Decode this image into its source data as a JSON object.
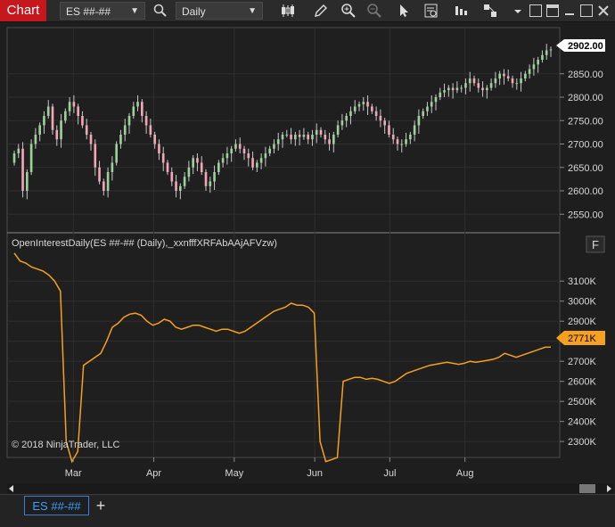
{
  "toolbar": {
    "chart_label": "Chart",
    "instrument": "ES ##-##",
    "interval": "Daily"
  },
  "price_panel": {
    "y_ticks": [
      "2850.00",
      "2800.00",
      "2750.00",
      "2700.00",
      "2650.00",
      "2600.00",
      "2550.00"
    ],
    "last_price": "2902.00"
  },
  "indicator_panel": {
    "title": "OpenInterestDaily(ES ##-## (Daily),_xxnfffXRFAbAAjAFVzw)",
    "f_button": "F",
    "y_ticks": [
      "3100K",
      "3000K",
      "2900K",
      "2800K",
      "2700K",
      "2600K",
      "2500K",
      "2400K",
      "2300K"
    ],
    "last_value": "2771K",
    "copyright": "© 2018 NinjaTrader, LLC",
    "line_color": "#f5a01e"
  },
  "x_axis": {
    "months": [
      "Mar",
      "Apr",
      "May",
      "Jun",
      "Jul",
      "Aug"
    ]
  },
  "tabs": {
    "instrument_tab": "ES ##-##",
    "add_tab": "+"
  },
  "chart_data": [
    {
      "type": "candlestick",
      "series": [
        {
          "name": "ES ##-##"
        }
      ],
      "close": [
        2680,
        2690,
        2600,
        2640,
        2700,
        2720,
        2740,
        2760,
        2780,
        2730,
        2710,
        2750,
        2770,
        2790,
        2780,
        2760,
        2740,
        2720,
        2700,
        2650,
        2620,
        2600,
        2640,
        2660,
        2700,
        2720,
        2740,
        2760,
        2780,
        2790,
        2760,
        2740,
        2720,
        2700,
        2680,
        2660,
        2640,
        2620,
        2600,
        2610,
        2630,
        2650,
        2670,
        2660,
        2640,
        2610,
        2620,
        2640,
        2660,
        2670,
        2680,
        2690,
        2700,
        2690,
        2680,
        2670,
        2650,
        2660,
        2670,
        2680,
        2690,
        2700,
        2710,
        2720,
        2720,
        2710,
        2720,
        2715,
        2720,
        2710,
        2720,
        2730,
        2720,
        2710,
        2700,
        2720,
        2740,
        2750,
        2760,
        2770,
        2780,
        2785,
        2790,
        2780,
        2770,
        2760,
        2750,
        2740,
        2720,
        2710,
        2700,
        2700,
        2710,
        2720,
        2740,
        2760,
        2770,
        2780,
        2790,
        2800,
        2810,
        2815,
        2820,
        2815,
        2820,
        2820,
        2830,
        2840,
        2830,
        2820,
        2815,
        2820,
        2830,
        2840,
        2850,
        2845,
        2840,
        2830,
        2830,
        2840,
        2850,
        2860,
        2870,
        2880,
        2890,
        2900,
        2902
      ],
      "ylim": [
        2520,
        2920
      ],
      "y_tick_values": [
        2850,
        2800,
        2750,
        2700,
        2650,
        2600,
        2550
      ]
    },
    {
      "type": "line",
      "series": [
        {
          "name": "OpenInterestDaily",
          "values": [
            3240,
            3200,
            3190,
            3170,
            3160,
            3150,
            3130,
            3100,
            3050,
            2300,
            2200,
            2250,
            2680,
            2700,
            2720,
            2740,
            2800,
            2870,
            2890,
            2920,
            2935,
            2940,
            2930,
            2900,
            2880,
            2890,
            2910,
            2900,
            2870,
            2860,
            2870,
            2880,
            2880,
            2870,
            2860,
            2850,
            2860,
            2860,
            2850,
            2840,
            2850,
            2870,
            2890,
            2910,
            2930,
            2950,
            2960,
            2970,
            2990,
            2980,
            2980,
            2970,
            2940,
            2300,
            2200,
            2210,
            2220,
            2600,
            2610,
            2620,
            2620,
            2610,
            2615,
            2610,
            2600,
            2590,
            2600,
            2620,
            2640,
            2650,
            2660,
            2670,
            2680,
            2685,
            2690,
            2695,
            2690,
            2685,
            2690,
            2700,
            2695,
            2700,
            2705,
            2710,
            2720,
            2740,
            2730,
            2720,
            2730,
            2740,
            2750,
            2760,
            2770,
            2771
          ]
        }
      ],
      "ylim": [
        2225,
        3230
      ],
      "y_tick_values": [
        3100,
        3000,
        2900,
        2800,
        2700,
        2600,
        2500,
        2400,
        2300
      ]
    }
  ]
}
